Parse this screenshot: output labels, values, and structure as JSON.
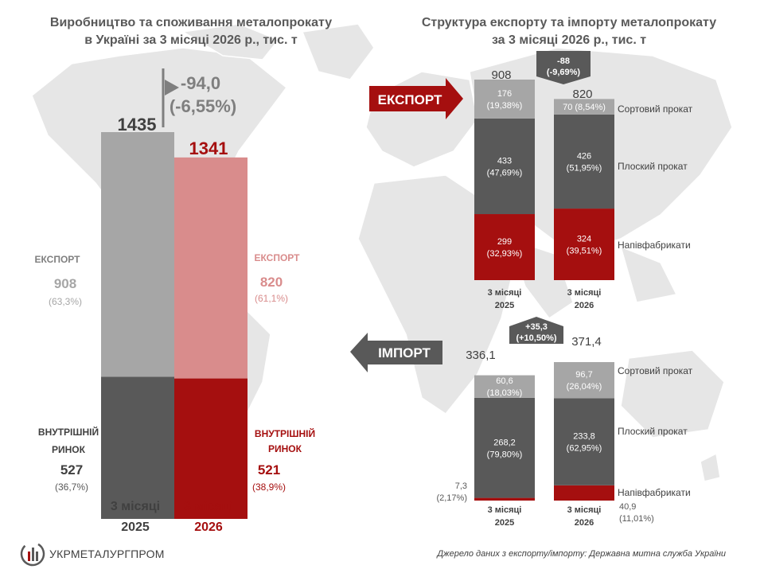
{
  "left_title": [
    "Виробництво та споживання металопрокату",
    "в Україні за 3 місяці 2026 р., тис. т"
  ],
  "right_title": [
    "Структура експорту та імпорту металопрокату",
    "за 3 місяці 2026 р., тис. т"
  ],
  "colors": {
    "grey_light": "#a6a6a6",
    "grey_dark": "#595959",
    "red_dark": "#a50f0f",
    "red_light": "#d98c8c",
    "grey_mid": "#898989",
    "map": "#e6e6e6"
  },
  "chart_data": [
    {
      "type": "bar",
      "title": "Виробництво та споживання металопрокату в Україні за 3 місяці 2026 р., тис. т",
      "categories": [
        "3 місяці 2025",
        "3 місяці 2026"
      ],
      "totals": [
        1435,
        1341
      ],
      "change_label": [
        "-94,0",
        "(-6,55%)"
      ],
      "series": [
        {
          "name": "ВНУТРІШНІЙ РИНОК",
          "values": [
            527,
            521
          ],
          "share_labels": [
            "(36,7%)",
            "(38,9%)"
          ]
        },
        {
          "name": "ЕКСПОРТ",
          "values": [
            908,
            820
          ],
          "share_labels": [
            "(63,3%)",
            "(61,1%)"
          ]
        }
      ]
    },
    {
      "type": "bar",
      "title": "Структура експорту",
      "badge": "ЕКСПОРТ",
      "categories": [
        "3 місяці 2025",
        "3 місяці 2026"
      ],
      "totals": [
        908,
        820
      ],
      "change_label": [
        "-88",
        "(-9,69%)"
      ],
      "series": [
        {
          "name": "Напівфабрикати",
          "values": [
            299,
            324
          ],
          "labels": [
            "299\n(32,93%)",
            "324\n(39,51%)"
          ]
        },
        {
          "name": "Плоский прокат",
          "values": [
            433,
            426
          ],
          "labels": [
            "433\n(47,69%)",
            "426\n(51,95%)"
          ]
        },
        {
          "name": "Сортовий прокат",
          "values": [
            176,
            70
          ],
          "labels": [
            "176\n(19,38%)",
            "70 (8,54%)"
          ]
        }
      ]
    },
    {
      "type": "bar",
      "title": "Структура імпорту",
      "badge": "ІМПОРТ",
      "categories": [
        "3 місяці 2025",
        "3 місяці 2026"
      ],
      "totals": [
        "336,1",
        "371,4"
      ],
      "change_label": [
        "+35,3",
        "(+10,50%)"
      ],
      "series": [
        {
          "name": "Напівфабрикати",
          "values": [
            7.3,
            40.9
          ],
          "labels": [
            "7,3\n(2,17%)",
            "40,9\n(11,01%)"
          ]
        },
        {
          "name": "Плоский прокат",
          "values": [
            268.2,
            233.8
          ],
          "labels": [
            "268,2\n(79,80%)",
            "233,8\n(62,95%)"
          ]
        },
        {
          "name": "Сортовий прокат",
          "values": [
            60.6,
            96.7
          ],
          "labels": [
            "60,6\n(18,03%)",
            "96,7\n(26,04%)"
          ]
        }
      ]
    }
  ],
  "source": "Джерело даних з експорту/імпорту: Державна митна служба України",
  "logo": "УКРМЕТАЛУРГПРОМ"
}
